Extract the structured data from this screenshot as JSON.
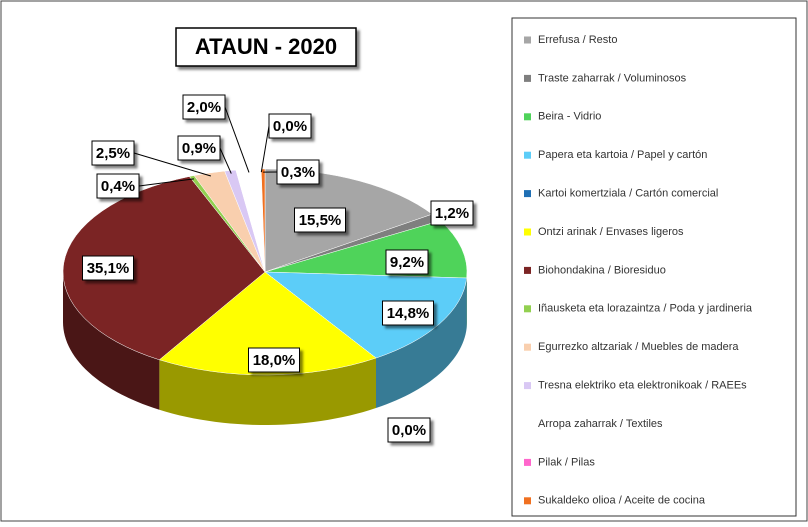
{
  "chart_data": {
    "type": "pie",
    "title": "ATAUN - 2020",
    "categories": [
      "Errefusa / Resto",
      "Traste zaharrak / Voluminosos",
      "Beira - Vidrio",
      "Papera eta kartoia / Papel y cartón",
      "Kartoi komertziala / Cartón comercial",
      "Ontzi arinak / Envases ligeros",
      "Biohondakina / Bioresiduo",
      "Iñausketa eta lorazaintza / Poda y jardineria",
      "Egurrezko altzariak / Muebles de madera",
      "Tresna elektriko eta elektronikoak / RAEEs",
      "Arropa zaharrak / Textiles",
      "Pilak / Pilas",
      "Sukaldeko olioa / Aceite de cocina"
    ],
    "values": [
      15.5,
      1.2,
      9.2,
      14.8,
      0.0,
      18.0,
      35.1,
      0.4,
      2.5,
      0.9,
      2.0,
      0.0,
      0.3
    ],
    "value_labels": [
      "15,5%",
      "1,2%",
      "9,2%",
      "14,8%",
      "0,0%",
      "18,0%",
      "35,1%",
      "0,4%",
      "2,5%",
      "0,9%",
      "2,0%",
      "0,0%",
      "0,3%"
    ],
    "colors": [
      "#a6a6a6",
      "#7f7f7f",
      "#4fd35a",
      "#5ccdf8",
      "#1f6fb4",
      "#ffff00",
      "#7b2424",
      "#92d050",
      "#f9cfae",
      "#d9c8f4",
      "#ffffff",
      "#ff66cc",
      "#f07020"
    ]
  }
}
